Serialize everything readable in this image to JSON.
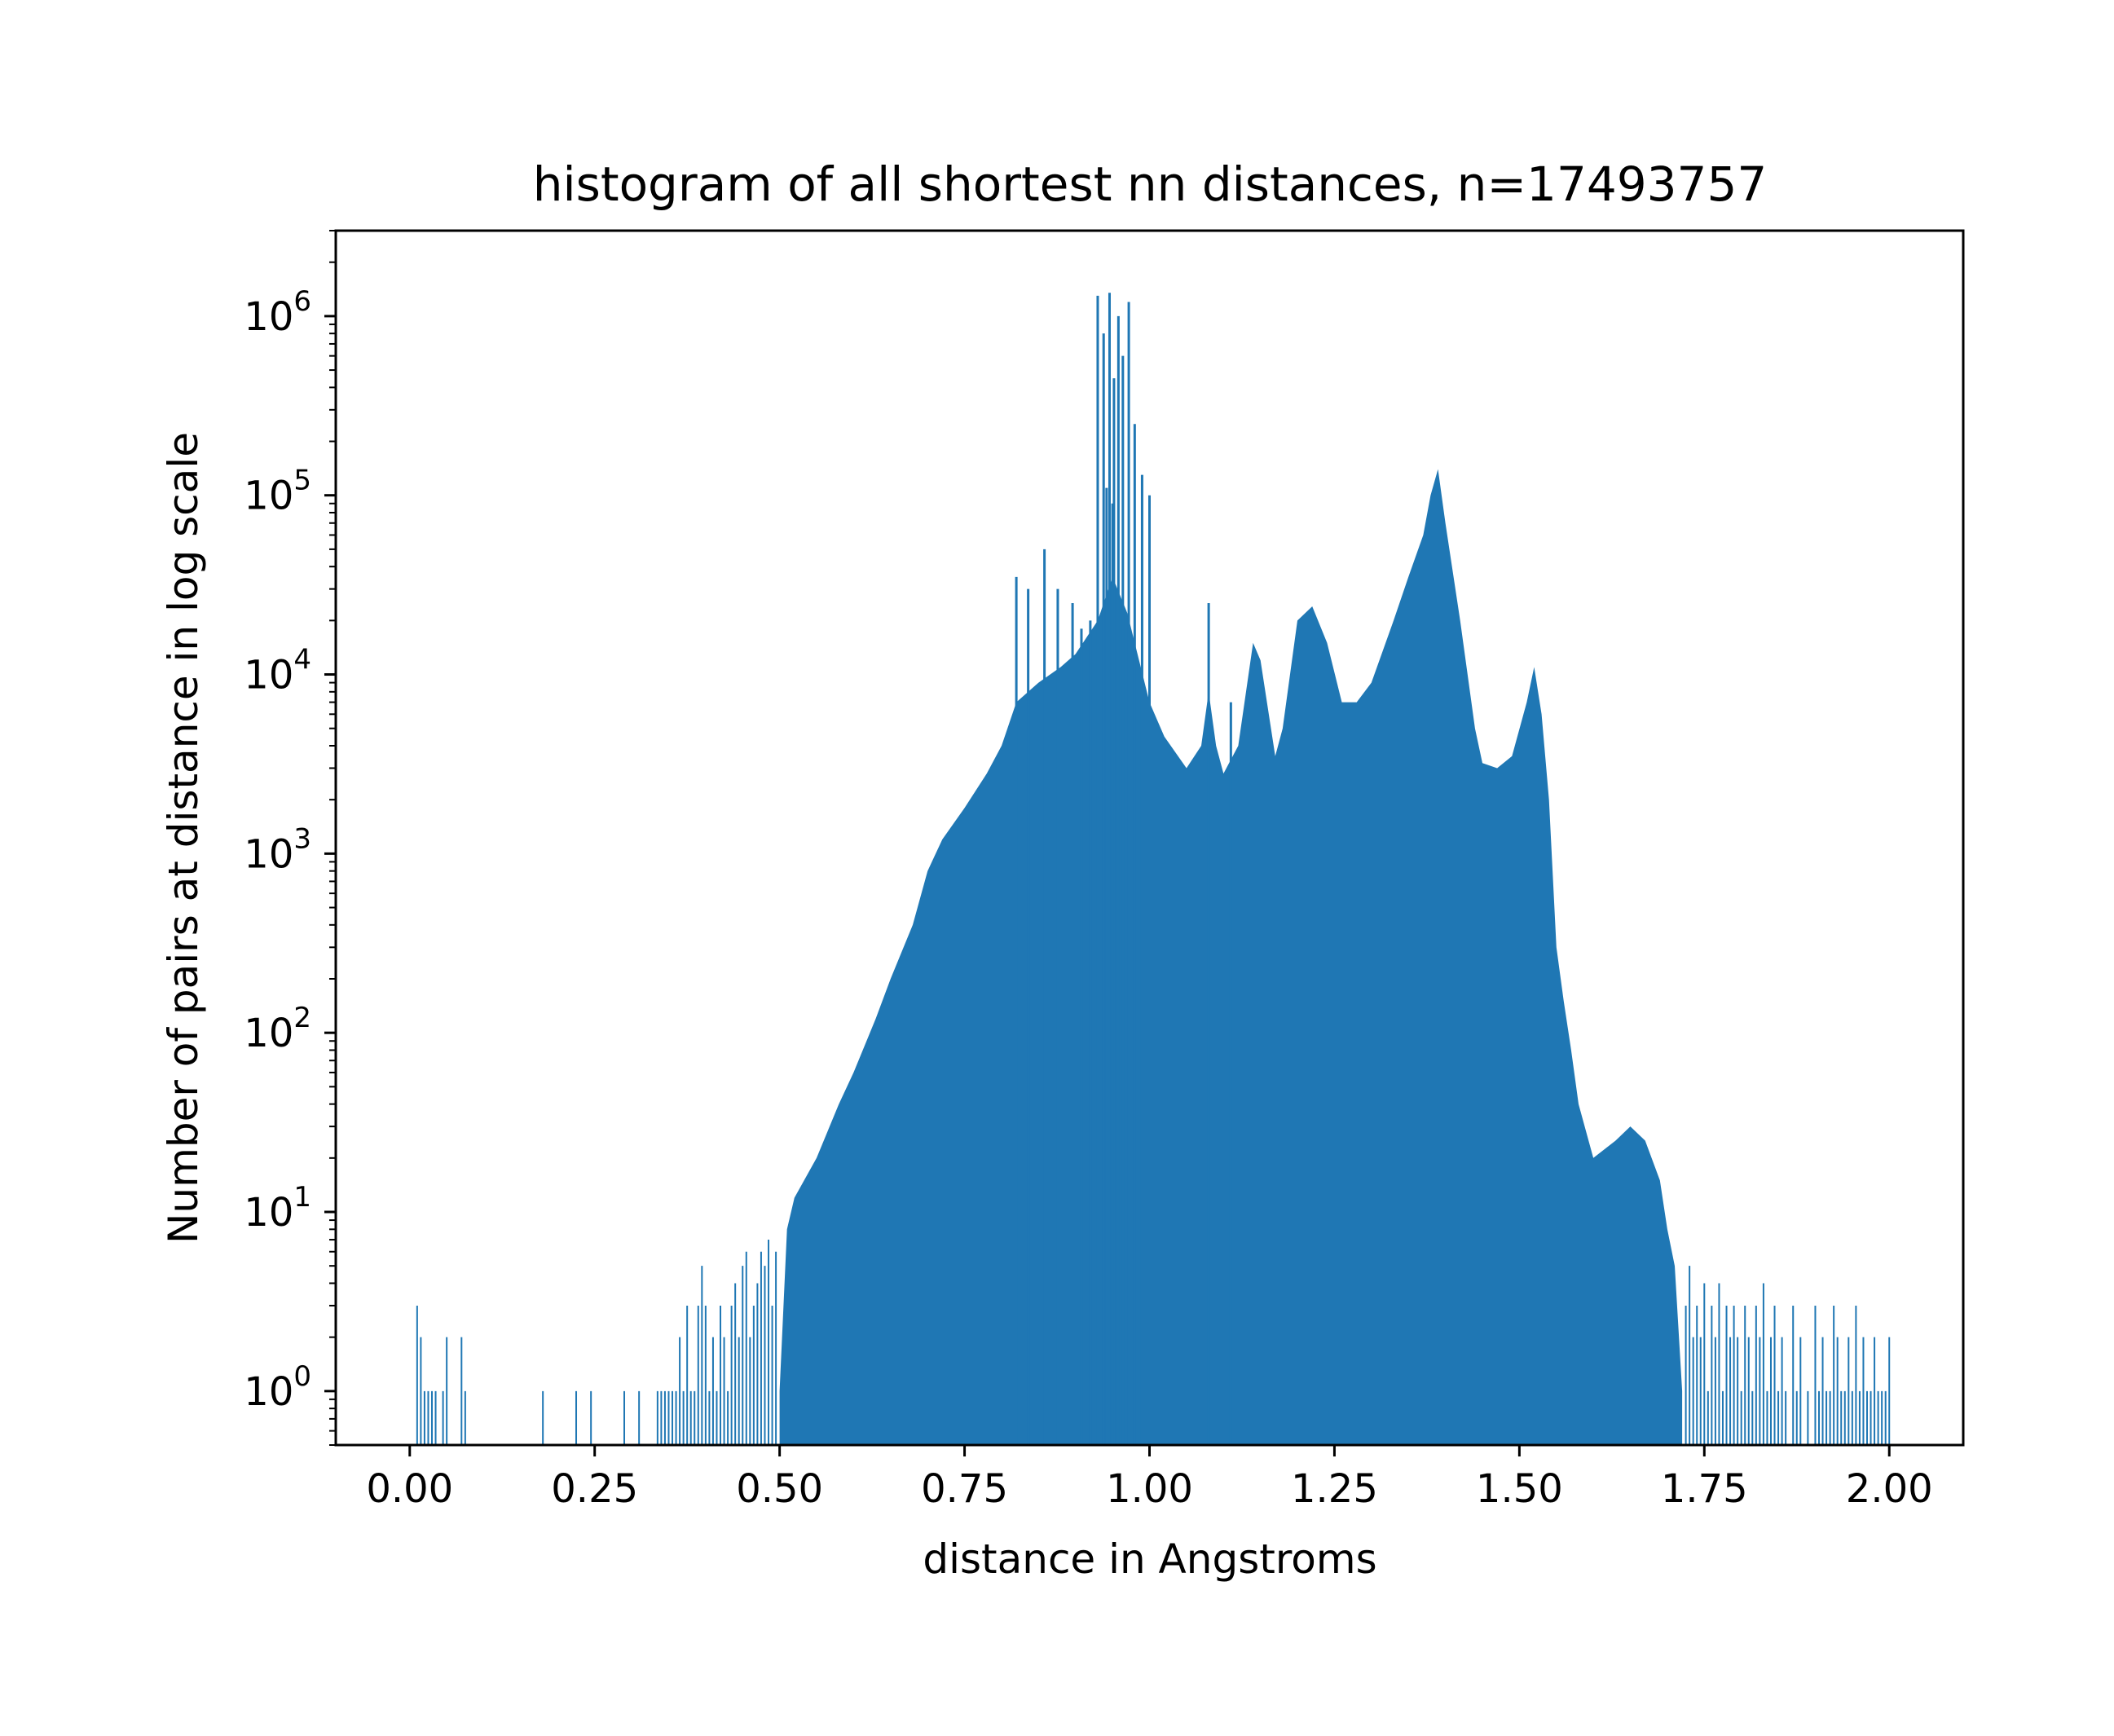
{
  "chart_data": {
    "type": "bar",
    "title": "histogram of all shortest nn distances, n=17493757",
    "xlabel": "distance in Angstroms",
    "ylabel": "Number of pairs at distance in log scale",
    "xlim": [
      -0.1,
      2.1
    ],
    "ylim": [
      0.5,
      3000000
    ],
    "yscale": "log",
    "grid": false,
    "color": "#1f77b4",
    "x_ticks": [
      {
        "value": 0.0,
        "label": "0.00"
      },
      {
        "value": 0.25,
        "label": "0.25"
      },
      {
        "value": 0.5,
        "label": "0.50"
      },
      {
        "value": 0.75,
        "label": "0.75"
      },
      {
        "value": 1.0,
        "label": "1.00"
      },
      {
        "value": 1.25,
        "label": "1.25"
      },
      {
        "value": 1.5,
        "label": "1.50"
      },
      {
        "value": 1.75,
        "label": "1.75"
      },
      {
        "value": 2.0,
        "label": "2.00"
      }
    ],
    "y_ticks": [
      {
        "value": 1,
        "base": "10",
        "exp": "0"
      },
      {
        "value": 10,
        "base": "10",
        "exp": "1"
      },
      {
        "value": 100,
        "base": "10",
        "exp": "2"
      },
      {
        "value": 1000,
        "base": "10",
        "exp": "3"
      },
      {
        "value": 10000,
        "base": "10",
        "exp": "4"
      },
      {
        "value": 100000,
        "base": "10",
        "exp": "5"
      },
      {
        "value": 1000000,
        "base": "10",
        "exp": "6"
      }
    ],
    "envelope": [
      [
        0.5,
        1
      ],
      [
        0.51,
        8
      ],
      [
        0.52,
        12
      ],
      [
        0.55,
        20
      ],
      [
        0.58,
        40
      ],
      [
        0.6,
        60
      ],
      [
        0.63,
        120
      ],
      [
        0.65,
        200
      ],
      [
        0.68,
        400
      ],
      [
        0.7,
        800
      ],
      [
        0.72,
        1200
      ],
      [
        0.75,
        1800
      ],
      [
        0.78,
        2800
      ],
      [
        0.8,
        4000
      ],
      [
        0.82,
        7000
      ],
      [
        0.85,
        9000
      ],
      [
        0.88,
        11000
      ],
      [
        0.9,
        13000
      ],
      [
        0.93,
        20000
      ],
      [
        0.95,
        35000
      ],
      [
        0.97,
        22000
      ],
      [
        1.0,
        7000
      ],
      [
        1.02,
        4500
      ],
      [
        1.05,
        3000
      ],
      [
        1.07,
        4000
      ],
      [
        1.08,
        8000
      ],
      [
        1.09,
        4000
      ],
      [
        1.1,
        2800
      ],
      [
        1.12,
        4000
      ],
      [
        1.14,
        15000
      ],
      [
        1.15,
        12000
      ],
      [
        1.17,
        3500
      ],
      [
        1.18,
        5000
      ],
      [
        1.2,
        20000
      ],
      [
        1.22,
        24000
      ],
      [
        1.24,
        15000
      ],
      [
        1.26,
        7000
      ],
      [
        1.28,
        7000
      ],
      [
        1.3,
        9000
      ],
      [
        1.33,
        20000
      ],
      [
        1.35,
        35000
      ],
      [
        1.37,
        60000
      ],
      [
        1.38,
        100000
      ],
      [
        1.39,
        140000
      ],
      [
        1.4,
        70000
      ],
      [
        1.42,
        20000
      ],
      [
        1.44,
        5000
      ],
      [
        1.45,
        3200
      ],
      [
        1.47,
        3000
      ],
      [
        1.49,
        3500
      ],
      [
        1.51,
        7000
      ],
      [
        1.52,
        11000
      ],
      [
        1.53,
        6000
      ],
      [
        1.54,
        2000
      ],
      [
        1.55,
        300
      ],
      [
        1.56,
        150
      ],
      [
        1.57,
        80
      ],
      [
        1.58,
        40
      ],
      [
        1.6,
        20
      ],
      [
        1.63,
        25
      ],
      [
        1.65,
        30
      ],
      [
        1.67,
        25
      ],
      [
        1.69,
        15
      ],
      [
        1.7,
        8
      ],
      [
        1.71,
        5
      ],
      [
        1.72,
        1
      ]
    ],
    "spikes": [
      {
        "x": 0.93,
        "y": 1300000
      },
      {
        "x": 0.938,
        "y": 800000
      },
      {
        "x": 0.946,
        "y": 1350000
      },
      {
        "x": 0.952,
        "y": 450000
      },
      {
        "x": 0.958,
        "y": 1000000
      },
      {
        "x": 0.964,
        "y": 600000
      },
      {
        "x": 0.972,
        "y": 1200000
      },
      {
        "x": 0.98,
        "y": 250000
      },
      {
        "x": 0.99,
        "y": 130000
      },
      {
        "x": 1.0,
        "y": 100000
      },
      {
        "x": 0.942,
        "y": 110000
      },
      {
        "x": 0.95,
        "y": 90000
      },
      {
        "x": 0.82,
        "y": 35000
      },
      {
        "x": 0.836,
        "y": 30000
      },
      {
        "x": 0.858,
        "y": 50000
      },
      {
        "x": 0.876,
        "y": 30000
      },
      {
        "x": 0.896,
        "y": 25000
      },
      {
        "x": 0.908,
        "y": 18000
      },
      {
        "x": 0.92,
        "y": 20000
      },
      {
        "x": 1.08,
        "y": 25000
      },
      {
        "x": 1.11,
        "y": 7000
      }
    ],
    "sparse": [
      {
        "x": 0.01,
        "y": 3
      },
      {
        "x": 0.015,
        "y": 2
      },
      {
        "x": 0.02,
        "y": 1
      },
      {
        "x": 0.025,
        "y": 1
      },
      {
        "x": 0.03,
        "y": 1
      },
      {
        "x": 0.035,
        "y": 1
      },
      {
        "x": 0.045,
        "y": 1
      },
      {
        "x": 0.05,
        "y": 2
      },
      {
        "x": 0.07,
        "y": 2
      },
      {
        "x": 0.075,
        "y": 1
      },
      {
        "x": 0.18,
        "y": 1
      },
      {
        "x": 0.225,
        "y": 1
      },
      {
        "x": 0.245,
        "y": 1
      },
      {
        "x": 0.29,
        "y": 1
      },
      {
        "x": 0.31,
        "y": 1
      },
      {
        "x": 0.335,
        "y": 1
      },
      {
        "x": 0.34,
        "y": 1
      },
      {
        "x": 0.345,
        "y": 1
      },
      {
        "x": 0.35,
        "y": 1
      },
      {
        "x": 0.355,
        "y": 1
      },
      {
        "x": 0.36,
        "y": 1
      },
      {
        "x": 0.365,
        "y": 2
      },
      {
        "x": 0.37,
        "y": 1
      },
      {
        "x": 0.375,
        "y": 3
      },
      {
        "x": 0.38,
        "y": 1
      },
      {
        "x": 0.385,
        "y": 1
      },
      {
        "x": 0.39,
        "y": 3
      },
      {
        "x": 0.395,
        "y": 5
      },
      {
        "x": 0.4,
        "y": 3
      },
      {
        "x": 0.405,
        "y": 1
      },
      {
        "x": 0.41,
        "y": 2
      },
      {
        "x": 0.415,
        "y": 1
      },
      {
        "x": 0.42,
        "y": 3
      },
      {
        "x": 0.425,
        "y": 2
      },
      {
        "x": 0.43,
        "y": 1
      },
      {
        "x": 0.435,
        "y": 3
      },
      {
        "x": 0.44,
        "y": 4
      },
      {
        "x": 0.445,
        "y": 2
      },
      {
        "x": 0.45,
        "y": 5
      },
      {
        "x": 0.455,
        "y": 6
      },
      {
        "x": 0.46,
        "y": 2
      },
      {
        "x": 0.465,
        "y": 3
      },
      {
        "x": 0.47,
        "y": 4
      },
      {
        "x": 0.475,
        "y": 6
      },
      {
        "x": 0.48,
        "y": 5
      },
      {
        "x": 0.485,
        "y": 7
      },
      {
        "x": 0.49,
        "y": 3
      },
      {
        "x": 0.495,
        "y": 6
      },
      {
        "x": 1.725,
        "y": 3
      },
      {
        "x": 1.73,
        "y": 5
      },
      {
        "x": 1.735,
        "y": 2
      },
      {
        "x": 1.74,
        "y": 3
      },
      {
        "x": 1.745,
        "y": 2
      },
      {
        "x": 1.75,
        "y": 4
      },
      {
        "x": 1.755,
        "y": 1
      },
      {
        "x": 1.76,
        "y": 3
      },
      {
        "x": 1.765,
        "y": 2
      },
      {
        "x": 1.77,
        "y": 4
      },
      {
        "x": 1.775,
        "y": 1
      },
      {
        "x": 1.78,
        "y": 3
      },
      {
        "x": 1.785,
        "y": 2
      },
      {
        "x": 1.79,
        "y": 3
      },
      {
        "x": 1.795,
        "y": 2
      },
      {
        "x": 1.8,
        "y": 1
      },
      {
        "x": 1.805,
        "y": 3
      },
      {
        "x": 1.81,
        "y": 2
      },
      {
        "x": 1.815,
        "y": 1
      },
      {
        "x": 1.82,
        "y": 3
      },
      {
        "x": 1.825,
        "y": 2
      },
      {
        "x": 1.83,
        "y": 4
      },
      {
        "x": 1.835,
        "y": 1
      },
      {
        "x": 1.84,
        "y": 2
      },
      {
        "x": 1.845,
        "y": 3
      },
      {
        "x": 1.85,
        "y": 1
      },
      {
        "x": 1.855,
        "y": 2
      },
      {
        "x": 1.86,
        "y": 1
      },
      {
        "x": 1.87,
        "y": 3
      },
      {
        "x": 1.875,
        "y": 1
      },
      {
        "x": 1.88,
        "y": 2
      },
      {
        "x": 1.89,
        "y": 1
      },
      {
        "x": 1.9,
        "y": 3
      },
      {
        "x": 1.905,
        "y": 1
      },
      {
        "x": 1.91,
        "y": 2
      },
      {
        "x": 1.915,
        "y": 1
      },
      {
        "x": 1.92,
        "y": 1
      },
      {
        "x": 1.925,
        "y": 3
      },
      {
        "x": 1.93,
        "y": 2
      },
      {
        "x": 1.935,
        "y": 1
      },
      {
        "x": 1.94,
        "y": 1
      },
      {
        "x": 1.945,
        "y": 2
      },
      {
        "x": 1.95,
        "y": 1
      },
      {
        "x": 1.955,
        "y": 3
      },
      {
        "x": 1.96,
        "y": 1
      },
      {
        "x": 1.965,
        "y": 2
      },
      {
        "x": 1.97,
        "y": 1
      },
      {
        "x": 1.975,
        "y": 1
      },
      {
        "x": 1.98,
        "y": 2
      },
      {
        "x": 1.985,
        "y": 1
      },
      {
        "x": 1.99,
        "y": 1
      },
      {
        "x": 1.995,
        "y": 1
      },
      {
        "x": 2.0,
        "y": 2
      }
    ]
  }
}
